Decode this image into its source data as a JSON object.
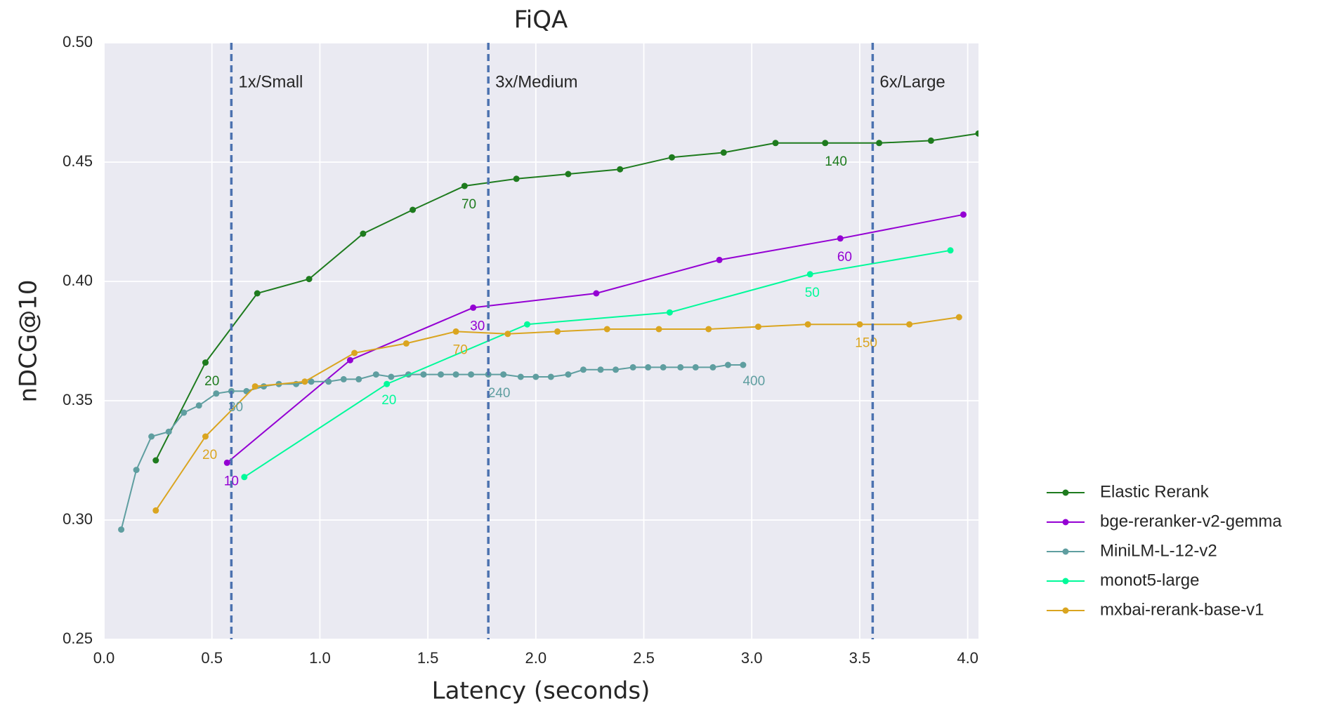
{
  "chart_data": {
    "type": "line",
    "title": "FiQA",
    "x_label": "Latency (seconds)",
    "y_label": "nDCG@10",
    "xlim": [
      0,
      4.05
    ],
    "ylim": [
      0.25,
      0.5
    ],
    "xticks": [
      {
        "value": 0,
        "label": "0.0"
      },
      0.5,
      {
        "value": 1,
        "label": "1.0"
      },
      1.5,
      {
        "value": 2,
        "label": "2.0"
      },
      2.5,
      {
        "value": 3,
        "label": "3.0"
      },
      3.5,
      {
        "value": 4,
        "label": "4.0"
      }
    ],
    "yticks": [
      0.25,
      {
        "value": 0.3,
        "label": "0.30"
      },
      0.35,
      {
        "value": 0.4,
        "label": "0.40"
      },
      0.45,
      {
        "value": 0.5,
        "label": "0.50"
      }
    ],
    "grid": true,
    "legend_position": "lower-right-outside",
    "reference_lines": [
      {
        "x": 0.59,
        "label": "1x/Small"
      },
      {
        "x": 1.78,
        "label": "3x/Medium"
      },
      {
        "x": 3.56,
        "label": "6x/Large"
      }
    ],
    "reference_color": "#4c72b0",
    "series": [
      {
        "name": "Elastic Rerank",
        "color": "#1e7b1e",
        "x": [
          0.24,
          0.47,
          0.71,
          0.95,
          1.2,
          1.43,
          1.67,
          1.91,
          2.15,
          2.39,
          2.63,
          2.87,
          3.11,
          3.34,
          3.59,
          3.83,
          4.05
        ],
        "values": [
          0.325,
          0.366,
          0.395,
          0.401,
          0.42,
          0.43,
          0.44,
          0.443,
          0.445,
          0.447,
          0.452,
          0.454,
          0.458,
          0.458,
          0.458,
          0.459,
          0.462
        ],
        "point_labels": [
          {
            "text": "20",
            "x": 0.5,
            "y": 0.358
          },
          {
            "text": "70",
            "x": 1.69,
            "y": 0.432
          },
          {
            "text": "140",
            "x": 3.39,
            "y": 0.45
          }
        ]
      },
      {
        "name": "bge-reranker-v2-gemma",
        "color": "#9400d3",
        "x": [
          0.57,
          1.14,
          1.71,
          2.28,
          2.85,
          3.41,
          3.98
        ],
        "values": [
          0.324,
          0.367,
          0.389,
          0.395,
          0.409,
          0.418,
          0.428
        ],
        "point_labels": [
          {
            "text": "10",
            "x": 0.59,
            "y": 0.316
          },
          {
            "text": "30",
            "x": 1.73,
            "y": 0.381
          },
          {
            "text": "60",
            "x": 3.43,
            "y": 0.41
          }
        ]
      },
      {
        "name": "MiniLM-L-12-v2",
        "color": "#5f9ea0",
        "x": [
          0.08,
          0.15,
          0.22,
          0.3,
          0.37,
          0.44,
          0.52,
          0.59,
          0.66,
          0.74,
          0.81,
          0.89,
          0.96,
          1.04,
          1.11,
          1.18,
          1.26,
          1.33,
          1.41,
          1.48,
          1.56,
          1.63,
          1.7,
          1.78,
          1.85,
          1.93,
          2.0,
          2.07,
          2.15,
          2.22,
          2.3,
          2.37,
          2.45,
          2.52,
          2.59,
          2.67,
          2.74,
          2.82,
          2.89,
          2.96
        ],
        "values": [
          0.296,
          0.321,
          0.335,
          0.337,
          0.345,
          0.348,
          0.353,
          0.354,
          0.354,
          0.356,
          0.357,
          0.357,
          0.358,
          0.358,
          0.359,
          0.359,
          0.361,
          0.36,
          0.361,
          0.361,
          0.361,
          0.361,
          0.361,
          0.361,
          0.361,
          0.36,
          0.36,
          0.36,
          0.361,
          0.363,
          0.363,
          0.363,
          0.364,
          0.364,
          0.364,
          0.364,
          0.364,
          0.364,
          0.365,
          0.365
        ],
        "point_labels": [
          {
            "text": "30",
            "x": 0.61,
            "y": 0.347
          },
          {
            "text": "240",
            "x": 1.83,
            "y": 0.353
          },
          {
            "text": "400",
            "x": 3.01,
            "y": 0.358
          }
        ]
      },
      {
        "name": "monot5-large",
        "color": "#00fa9a",
        "x": [
          0.65,
          1.31,
          1.96,
          2.62,
          3.27,
          3.92
        ],
        "values": [
          0.318,
          0.357,
          0.382,
          0.387,
          0.403,
          0.413
        ],
        "point_labels": [
          {
            "text": "20",
            "x": 1.32,
            "y": 0.35
          },
          {
            "text": "50",
            "x": 3.28,
            "y": 0.395
          }
        ]
      },
      {
        "name": "mxbai-rerank-base-v1",
        "color": "#daa520",
        "x": [
          0.24,
          0.47,
          0.7,
          0.93,
          1.16,
          1.4,
          1.63,
          1.87,
          2.1,
          2.33,
          2.57,
          2.8,
          3.03,
          3.26,
          3.5,
          3.73,
          3.96
        ],
        "values": [
          0.304,
          0.335,
          0.356,
          0.358,
          0.37,
          0.374,
          0.379,
          0.378,
          0.379,
          0.38,
          0.38,
          0.38,
          0.381,
          0.382,
          0.382,
          0.382,
          0.385
        ],
        "point_labels": [
          {
            "text": "20",
            "x": 0.49,
            "y": 0.327
          },
          {
            "text": "70",
            "x": 1.65,
            "y": 0.371
          },
          {
            "text": "150",
            "x": 3.53,
            "y": 0.374
          }
        ]
      }
    ]
  }
}
